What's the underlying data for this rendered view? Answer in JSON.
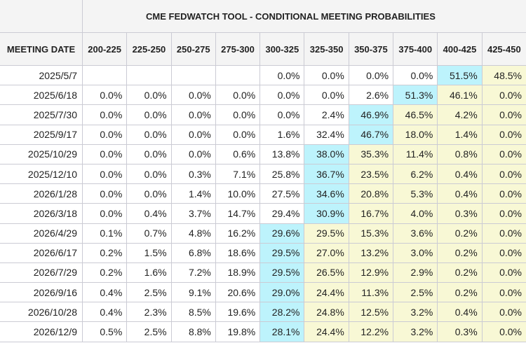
{
  "title": "CME FEDWATCH TOOL - CONDITIONAL MEETING PROBABILITIES",
  "date_header": "MEETING DATE",
  "columns": [
    "200-225",
    "225-250",
    "250-275",
    "275-300",
    "300-325",
    "325-350",
    "350-375",
    "375-400",
    "400-425",
    "425-450"
  ],
  "colors": {
    "max": "#bdf3fc",
    "above": "#f8f8d5",
    "header": "#f4f4f4"
  },
  "rows": [
    {
      "date": "2025/5/7",
      "values": [
        "",
        "",
        "",
        "",
        "0.0%",
        "0.0%",
        "0.0%",
        "0.0%",
        "51.5%",
        "48.5%"
      ]
    },
    {
      "date": "2025/6/18",
      "values": [
        "0.0%",
        "0.0%",
        "0.0%",
        "0.0%",
        "0.0%",
        "0.0%",
        "2.6%",
        "51.3%",
        "46.1%",
        "0.0%"
      ]
    },
    {
      "date": "2025/7/30",
      "values": [
        "0.0%",
        "0.0%",
        "0.0%",
        "0.0%",
        "0.0%",
        "2.4%",
        "46.9%",
        "46.5%",
        "4.2%",
        "0.0%"
      ]
    },
    {
      "date": "2025/9/17",
      "values": [
        "0.0%",
        "0.0%",
        "0.0%",
        "0.0%",
        "1.6%",
        "32.4%",
        "46.7%",
        "18.0%",
        "1.4%",
        "0.0%"
      ]
    },
    {
      "date": "2025/10/29",
      "values": [
        "0.0%",
        "0.0%",
        "0.0%",
        "0.6%",
        "13.8%",
        "38.0%",
        "35.3%",
        "11.4%",
        "0.8%",
        "0.0%"
      ]
    },
    {
      "date": "2025/12/10",
      "values": [
        "0.0%",
        "0.0%",
        "0.3%",
        "7.1%",
        "25.8%",
        "36.7%",
        "23.5%",
        "6.2%",
        "0.4%",
        "0.0%"
      ]
    },
    {
      "date": "2026/1/28",
      "values": [
        "0.0%",
        "0.0%",
        "1.4%",
        "10.0%",
        "27.5%",
        "34.6%",
        "20.8%",
        "5.3%",
        "0.4%",
        "0.0%"
      ]
    },
    {
      "date": "2026/3/18",
      "values": [
        "0.0%",
        "0.4%",
        "3.7%",
        "14.7%",
        "29.4%",
        "30.9%",
        "16.7%",
        "4.0%",
        "0.3%",
        "0.0%"
      ]
    },
    {
      "date": "2026/4/29",
      "values": [
        "0.1%",
        "0.7%",
        "4.8%",
        "16.2%",
        "29.6%",
        "29.5%",
        "15.3%",
        "3.6%",
        "0.2%",
        "0.0%"
      ]
    },
    {
      "date": "2026/6/17",
      "values": [
        "0.2%",
        "1.5%",
        "6.8%",
        "18.6%",
        "29.5%",
        "27.0%",
        "13.2%",
        "3.0%",
        "0.2%",
        "0.0%"
      ]
    },
    {
      "date": "2026/7/29",
      "values": [
        "0.2%",
        "1.6%",
        "7.2%",
        "18.9%",
        "29.5%",
        "26.5%",
        "12.9%",
        "2.9%",
        "0.2%",
        "0.0%"
      ]
    },
    {
      "date": "2026/9/16",
      "values": [
        "0.4%",
        "2.5%",
        "9.1%",
        "20.6%",
        "29.0%",
        "24.4%",
        "11.3%",
        "2.5%",
        "0.2%",
        "0.0%"
      ]
    },
    {
      "date": "2026/10/28",
      "values": [
        "0.4%",
        "2.3%",
        "8.5%",
        "19.6%",
        "28.2%",
        "24.8%",
        "12.5%",
        "3.2%",
        "0.4%",
        "0.0%"
      ]
    },
    {
      "date": "2026/12/9",
      "values": [
        "0.5%",
        "2.5%",
        "8.8%",
        "19.8%",
        "28.1%",
        "24.4%",
        "12.2%",
        "3.2%",
        "0.3%",
        "0.0%"
      ]
    }
  ]
}
